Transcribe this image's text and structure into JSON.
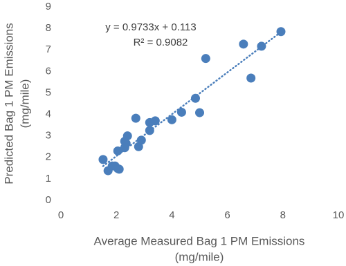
{
  "chart_data": {
    "type": "scatter",
    "xlabel": [
      "Average Measured Bag 1 PM Emissions",
      "(mg/mile)"
    ],
    "ylabel": [
      "Predicted Bag 1 PM Emissions",
      "(mg/mile)"
    ],
    "color": "#4a7ebb",
    "x": [
      1.52,
      1.7,
      1.85,
      1.95,
      2.05,
      2.1,
      2.05,
      2.3,
      2.3,
      2.4,
      2.35,
      2.7,
      2.8,
      2.9,
      3.2,
      3.2,
      3.4,
      4.0,
      4.35,
      4.85,
      5.0,
      5.22,
      6.58,
      6.85,
      7.23,
      7.93
    ],
    "values": [
      1.9,
      1.38,
      1.6,
      1.6,
      1.48,
      1.45,
      2.3,
      2.45,
      2.75,
      3.0,
      2.65,
      3.82,
      2.5,
      2.8,
      3.25,
      3.62,
      3.7,
      3.75,
      4.1,
      4.75,
      4.08,
      6.6,
      7.27,
      5.69,
      7.17,
      7.85
    ],
    "xlim": [
      0,
      10
    ],
    "xticks": [
      0,
      2,
      4,
      6,
      8,
      10
    ],
    "ylim": [
      0,
      9
    ],
    "yticks": [
      0,
      1,
      2,
      3,
      4,
      5,
      6,
      7,
      8,
      9
    ],
    "grid": false,
    "trendline": {
      "slope": 0.9733,
      "intercept": 0.113
    },
    "annotations": [
      "y = 0.9733x + 0.113",
      "R² = 0.9082"
    ]
  }
}
